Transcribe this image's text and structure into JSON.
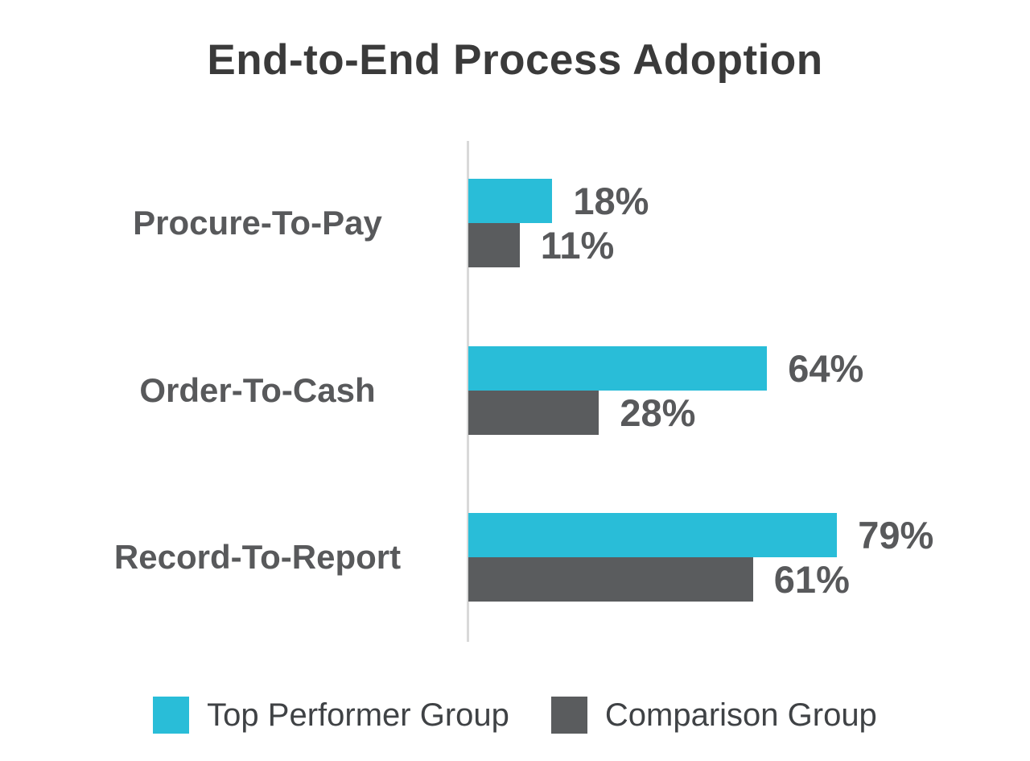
{
  "chart_data": {
    "type": "bar",
    "orientation": "horizontal",
    "title": "End-to-End Process Adoption",
    "categories": [
      "Procure-To-Pay",
      "Order-To-Cash",
      "Record-To-Report"
    ],
    "series": [
      {
        "name": "Top Performer Group",
        "color": "#29bdd8",
        "values": [
          18,
          64,
          79
        ],
        "labels": [
          "18%",
          "64%",
          "79%"
        ]
      },
      {
        "name": "Comparison Group",
        "color": "#5a5c5e",
        "values": [
          11,
          28,
          61
        ],
        "labels": [
          "11%",
          "28%",
          "61%"
        ]
      }
    ],
    "xlim": [
      0,
      100
    ],
    "grid": false,
    "legend_position": "bottom",
    "colors": {
      "title": "#3a3a3a",
      "labels": "#58595b",
      "legend_text": "#3f4245",
      "axis_line": "#d9d9d9",
      "background": "#ffffff"
    }
  }
}
